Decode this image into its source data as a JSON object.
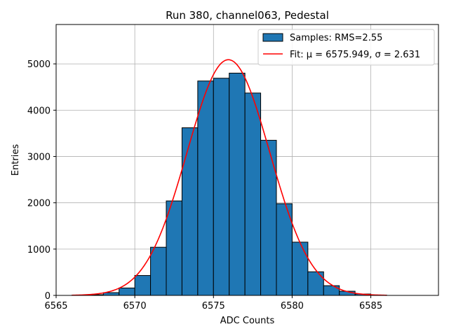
{
  "chart_data": {
    "type": "bar",
    "title": "Run 380, channel063, Pedestal",
    "xlabel": "ADC Counts",
    "ylabel": "Entries",
    "xlim": [
      6565,
      6589.3
    ],
    "ylim": [
      0,
      5850
    ],
    "xticks": [
      6565,
      6570,
      6575,
      6580,
      6585
    ],
    "yticks": [
      0,
      1000,
      2000,
      3000,
      4000,
      5000
    ],
    "grid": true,
    "legend_position": "top-right",
    "bin_width": 1,
    "bins": [
      {
        "start": 6566,
        "count": 5
      },
      {
        "start": 6567,
        "count": 15
      },
      {
        "start": 6568,
        "count": 60
      },
      {
        "start": 6569,
        "count": 160
      },
      {
        "start": 6570,
        "count": 430
      },
      {
        "start": 6571,
        "count": 1040
      },
      {
        "start": 6572,
        "count": 2040
      },
      {
        "start": 6573,
        "count": 3620
      },
      {
        "start": 6574,
        "count": 4630
      },
      {
        "start": 6575,
        "count": 4690
      },
      {
        "start": 6576,
        "count": 4800
      },
      {
        "start": 6577,
        "count": 4370
      },
      {
        "start": 6578,
        "count": 3350
      },
      {
        "start": 6579,
        "count": 1980
      },
      {
        "start": 6580,
        "count": 1150
      },
      {
        "start": 6581,
        "count": 510
      },
      {
        "start": 6582,
        "count": 210
      },
      {
        "start": 6583,
        "count": 90
      },
      {
        "start": 6584,
        "count": 30
      },
      {
        "start": 6585,
        "count": 8
      }
    ],
    "fit": {
      "mu": 6575.949,
      "sigma": 2.631,
      "amplitude": 5090,
      "x_range": [
        6566,
        6586
      ]
    },
    "series": [
      {
        "name": "Samples: RMS=2.55",
        "color": "#1f77b4",
        "kind": "histogram"
      },
      {
        "name": "Fit: μ = 6575.949, σ = 2.631",
        "color": "#ff0000",
        "kind": "line"
      }
    ]
  }
}
